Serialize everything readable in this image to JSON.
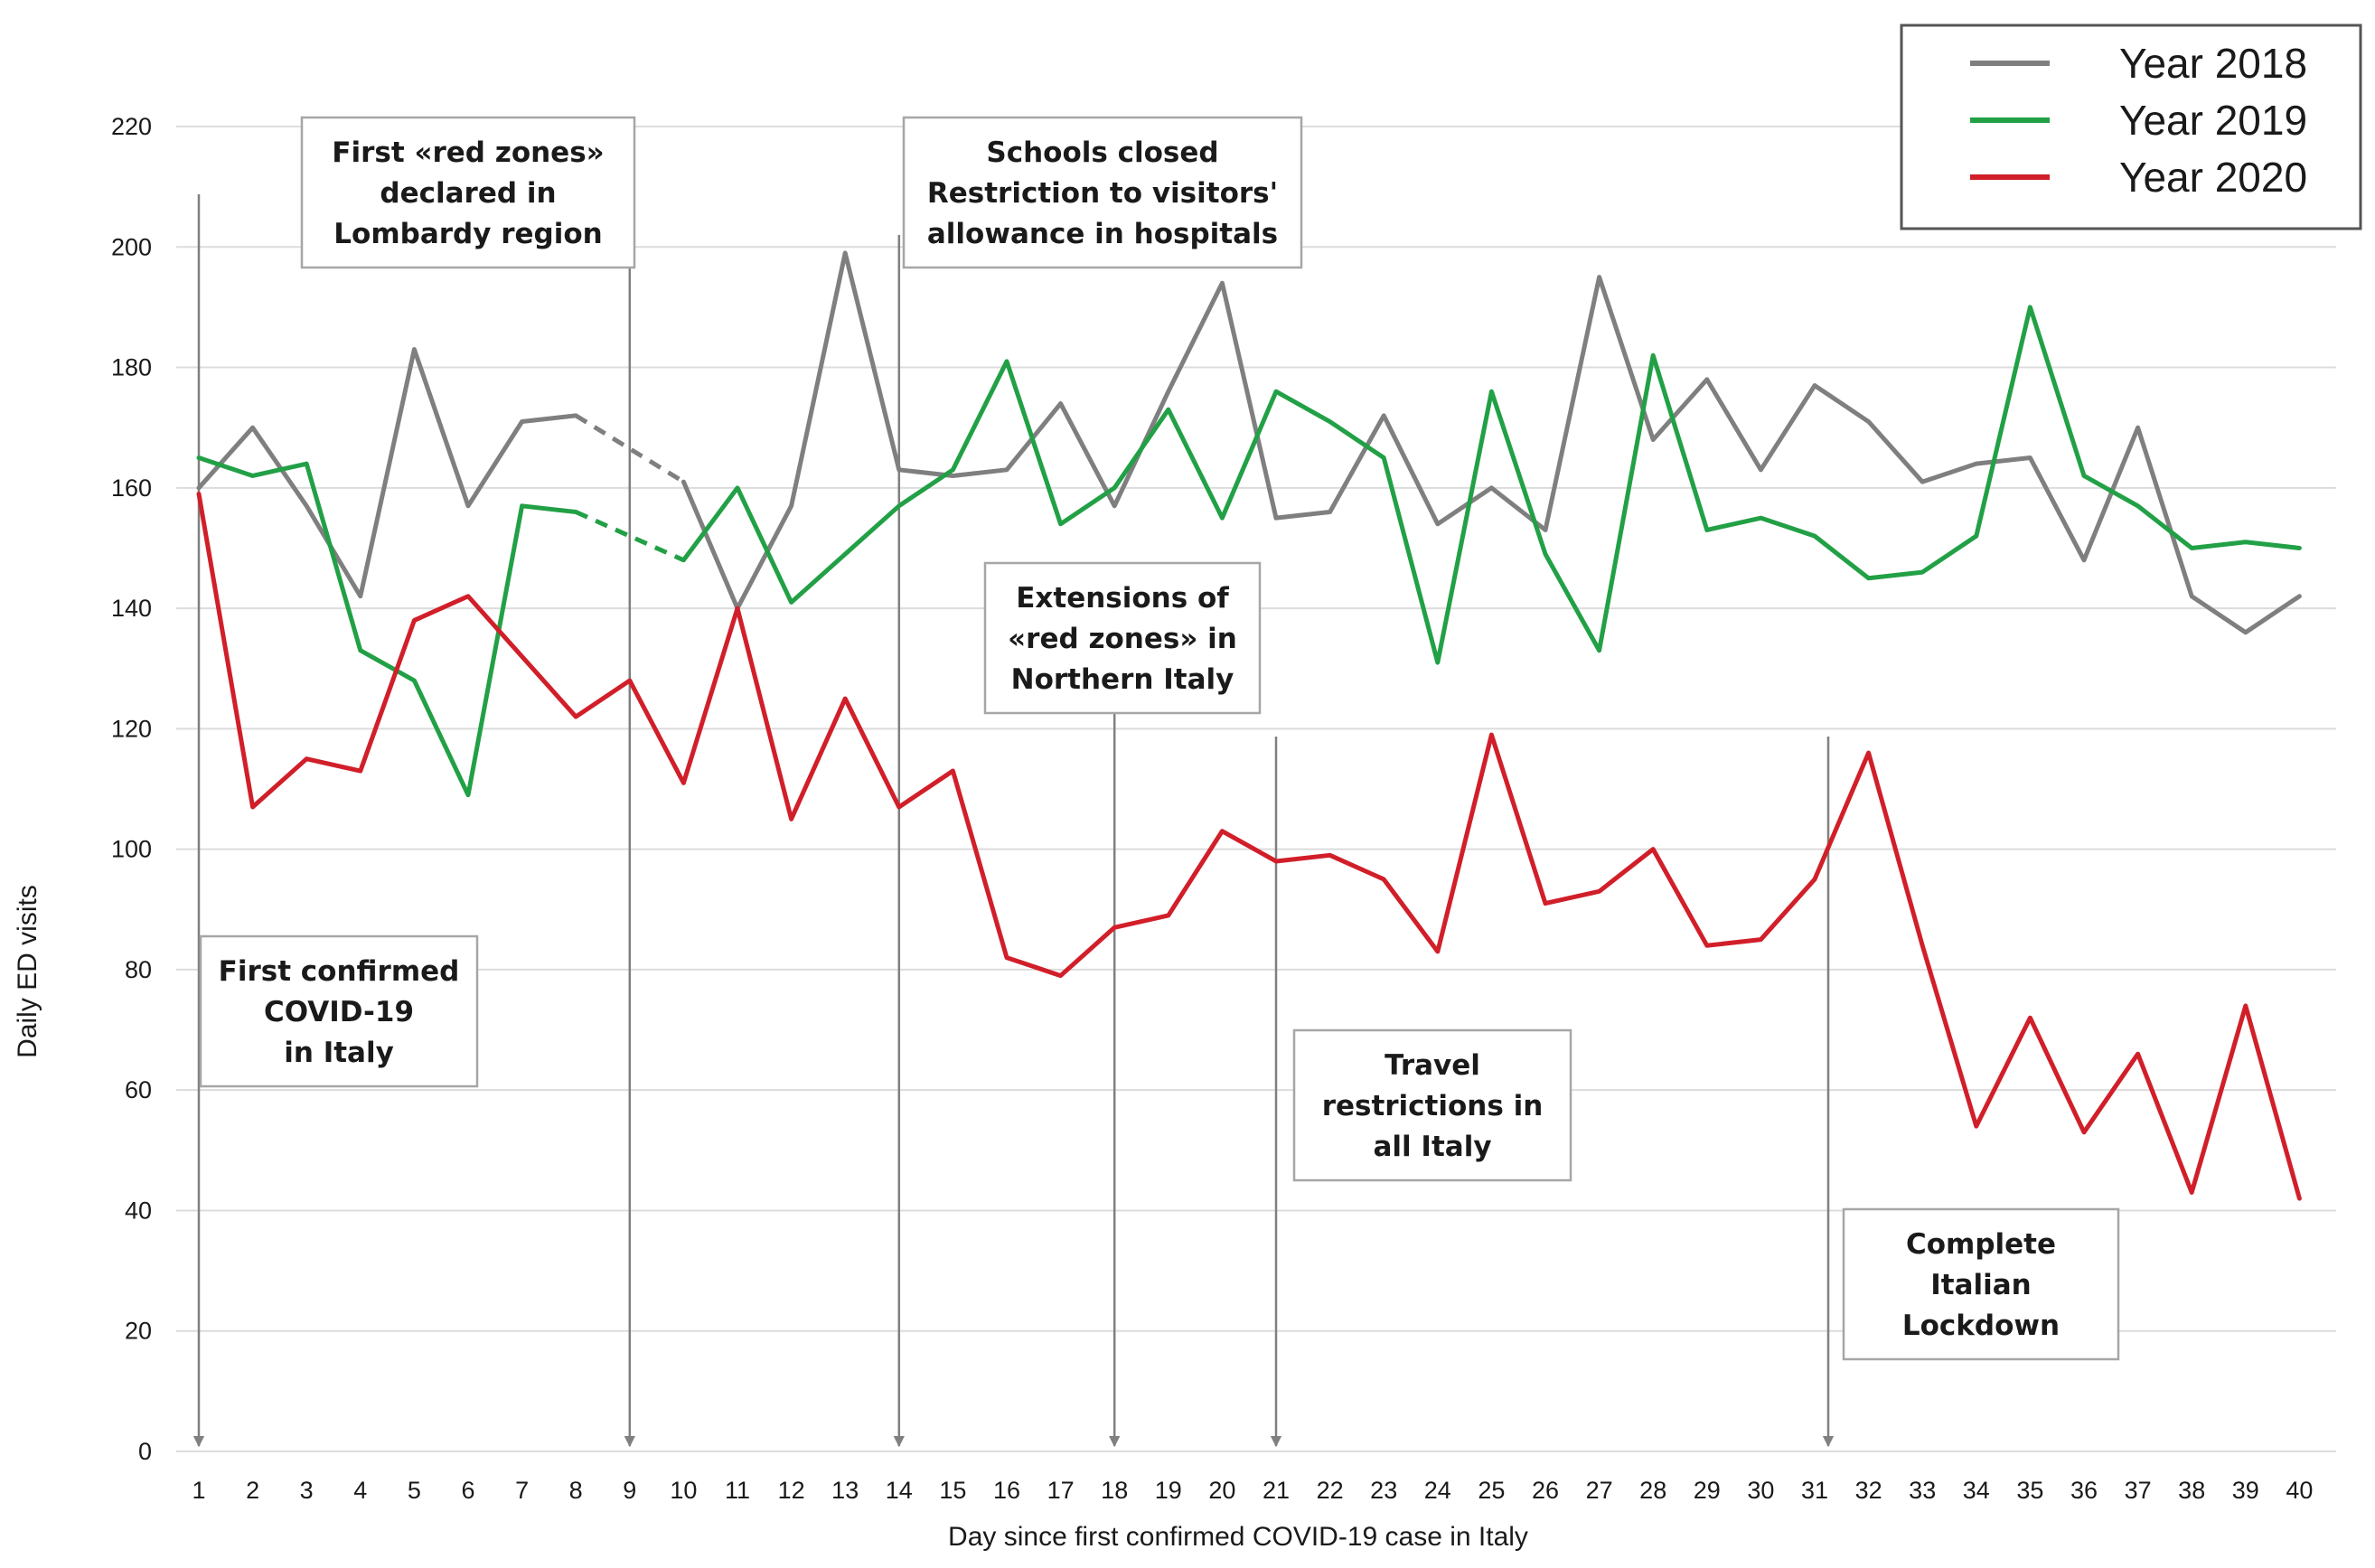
{
  "chart_data": {
    "type": "line",
    "title": "",
    "xlabel": "Day since first confirmed COVID-19 case in Italy",
    "ylabel": "Daily ED visits",
    "ylim": [
      0,
      220
    ],
    "yticks": [
      0,
      20,
      40,
      60,
      80,
      100,
      120,
      140,
      160,
      180,
      200,
      220
    ],
    "grid": "horizontal",
    "legend_position": "top-right",
    "x": [
      1,
      2,
      3,
      4,
      5,
      6,
      7,
      8,
      9,
      10,
      11,
      12,
      13,
      14,
      15,
      16,
      17,
      18,
      19,
      20,
      21,
      22,
      23,
      24,
      25,
      26,
      27,
      28,
      29,
      30,
      31,
      32,
      33,
      34,
      35,
      36,
      37,
      38,
      39,
      40
    ],
    "series": [
      {
        "name": "Year 2018",
        "color": "#7f7f7f",
        "dashed_segment": [
          8,
          10
        ],
        "values": [
          160,
          170,
          157,
          142,
          183,
          157,
          171,
          172,
          null,
          161,
          140,
          157,
          199,
          163,
          162,
          163,
          174,
          157,
          176,
          194,
          155,
          156,
          172,
          154,
          160,
          153,
          195,
          168,
          178,
          163,
          177,
          171,
          161,
          164,
          165,
          148,
          170,
          142,
          136,
          142
        ]
      },
      {
        "name": "Year 2019",
        "color": "#22a046",
        "dashed_segment": [
          8,
          10
        ],
        "values": [
          165,
          162,
          164,
          133,
          128,
          109,
          157,
          156,
          null,
          148,
          160,
          141,
          149,
          157,
          163,
          181,
          154,
          160,
          173,
          155,
          176,
          171,
          165,
          131,
          176,
          149,
          133,
          182,
          153,
          155,
          152,
          145,
          146,
          152,
          190,
          162,
          157,
          150,
          151,
          150
        ]
      },
      {
        "name": "Year 2020",
        "color": "#d11f2a",
        "values": [
          159,
          107,
          115,
          113,
          138,
          142,
          132,
          122,
          128,
          111,
          140,
          105,
          125,
          107,
          113,
          82,
          79,
          87,
          89,
          103,
          98,
          99,
          95,
          83,
          119,
          91,
          93,
          100,
          84,
          85,
          95,
          116,
          84,
          54,
          72,
          53,
          66,
          43,
          74,
          42
        ]
      }
    ],
    "annotations": [
      {
        "event_day": 1,
        "lines": [
          "First confirmed",
          "COVID-19",
          "in Italy"
        ]
      },
      {
        "event_day": 9,
        "lines": [
          "First «red zones»",
          "declared in",
          "Lombardy region"
        ]
      },
      {
        "event_day": 14,
        "lines": [
          "Schools closed",
          "Restriction to visitors'",
          "allowance  in hospitals"
        ]
      },
      {
        "event_day": 18,
        "lines": [
          "Extensions of",
          "«red zones» in",
          "Northern Italy"
        ]
      },
      {
        "event_day": 21,
        "lines": [
          "Travel",
          "restrictions in",
          "all Italy"
        ]
      },
      {
        "event_day": 31,
        "lines": [
          "Complete",
          "Italian",
          "Lockdown"
        ]
      }
    ]
  }
}
